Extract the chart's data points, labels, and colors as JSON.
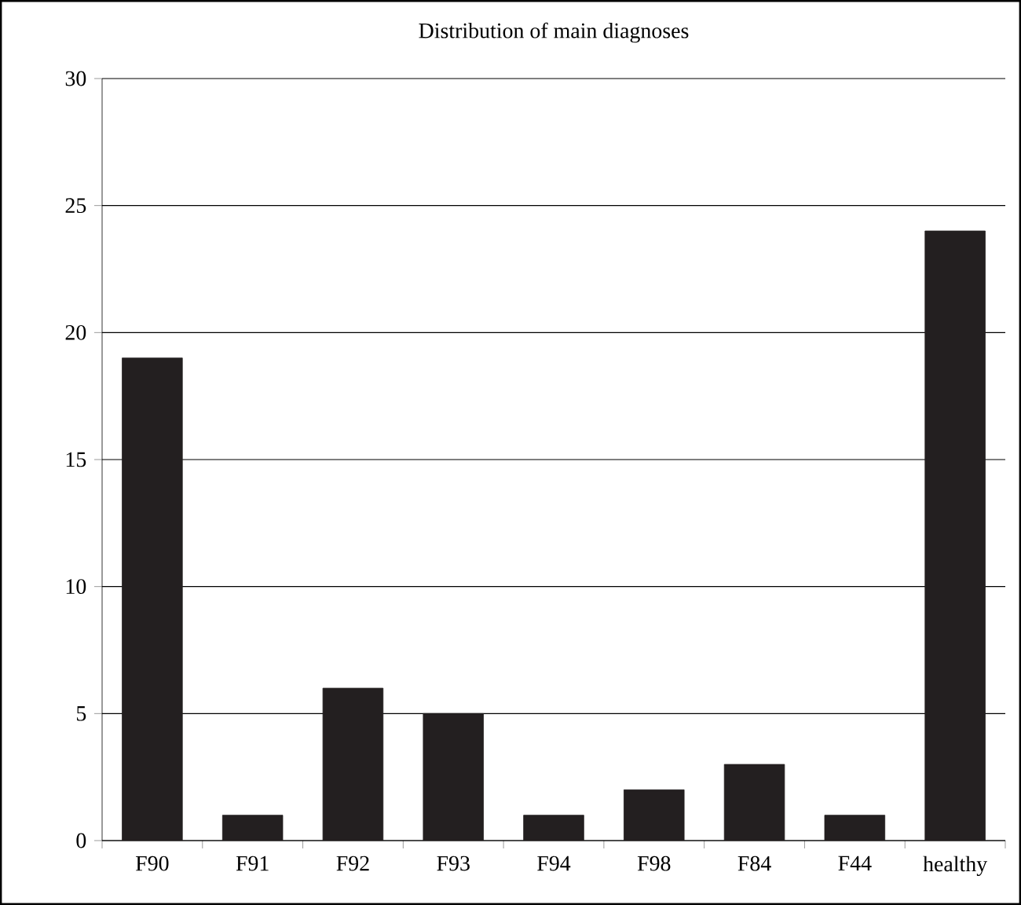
{
  "chart_data": {
    "type": "bar",
    "title": "Distribution of main diagnoses",
    "categories": [
      "F90",
      "F91",
      "F92",
      "F93",
      "F94",
      "F98",
      "F84",
      "F44",
      "healthy"
    ],
    "values": [
      19,
      1,
      6,
      5,
      1,
      2,
      3,
      1,
      24
    ],
    "color": "#231f20",
    "ylim": [
      0,
      30
    ],
    "yticks": [
      0,
      5,
      10,
      15,
      20,
      25,
      30
    ],
    "grid": "y"
  }
}
